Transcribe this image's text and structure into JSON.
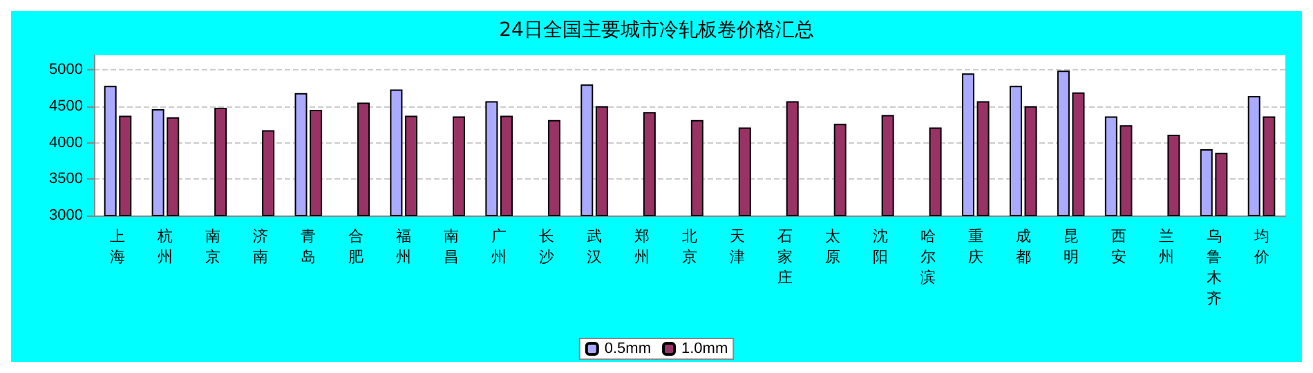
{
  "chart_data": {
    "type": "bar",
    "title": "24日全国主要城市冷轧板卷价格汇总",
    "categories": [
      "上海",
      "杭州",
      "南京",
      "济南",
      "青岛",
      "合肥",
      "福州",
      "南昌",
      "广州",
      "长沙",
      "武汉",
      "郑州",
      "北京",
      "天津",
      "石家庄",
      "太原",
      "沈阳",
      "哈尔滨",
      "重庆",
      "成都",
      "昆明",
      "西安",
      "兰州",
      "乌鲁木齐",
      "均价"
    ],
    "series": [
      {
        "name": "0.5mm",
        "color": "#aaaaff",
        "values": [
          4780,
          4460,
          null,
          null,
          4680,
          null,
          4730,
          null,
          4570,
          null,
          4800,
          null,
          null,
          null,
          null,
          null,
          null,
          null,
          4950,
          4780,
          4990,
          4360,
          null,
          3910,
          4640
        ]
      },
      {
        "name": "1.0mm",
        "color": "#993366",
        "values": [
          4370,
          4350,
          4480,
          4170,
          4450,
          4550,
          4370,
          4360,
          4370,
          4310,
          4500,
          4420,
          4310,
          4210,
          4570,
          4260,
          4380,
          4210,
          4570,
          4500,
          4690,
          4240,
          4110,
          3860,
          4360
        ]
      }
    ],
    "ylim": [
      3000,
      5200
    ],
    "yticks": [
      3000,
      3500,
      4000,
      4500,
      5000
    ],
    "grid": "y",
    "legend": "bottom"
  }
}
